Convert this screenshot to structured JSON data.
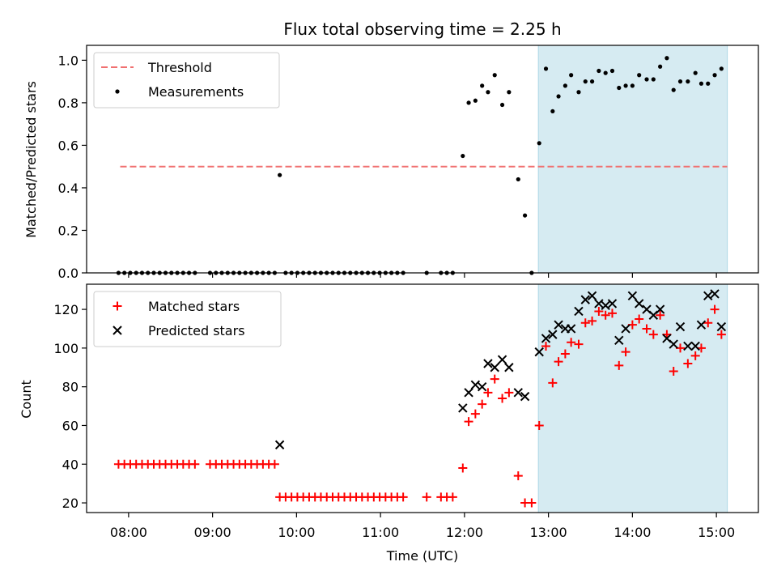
{
  "chart_data": {
    "type": "scatter",
    "title": "Flux total observing time = 2.25 h",
    "xlabel": "Time (UTC)",
    "xlim": [
      7.5,
      15.5
    ],
    "xticks": [
      8,
      9,
      10,
      11,
      12,
      13,
      14,
      15
    ],
    "xtick_labels": [
      "08:00",
      "09:00",
      "10:00",
      "11:00",
      "12:00",
      "13:00",
      "14:00",
      "15:00"
    ],
    "shaded_span": {
      "start": 12.88,
      "end": 15.13,
      "color": "#add8e6"
    },
    "top": {
      "ylabel": "Matched/Predicted stars",
      "ylim": [
        0,
        1.07
      ],
      "yticks": [
        0.0,
        0.2,
        0.4,
        0.6,
        0.8,
        1.0
      ],
      "ytick_labels": [
        "0.0",
        "0.2",
        "0.4",
        "0.6",
        "0.8",
        "1.0"
      ],
      "threshold": {
        "label": "Threshold",
        "value": 0.5,
        "x_start": 7.9,
        "x_end": 15.13,
        "color": "#f07070"
      },
      "legend": [
        "Threshold",
        "Measurements"
      ],
      "series": [
        {
          "name": "Measurements",
          "points": [
            [
              7.88,
              0
            ],
            [
              7.95,
              0
            ],
            [
              8.02,
              0
            ],
            [
              8.09,
              0
            ],
            [
              8.16,
              0
            ],
            [
              8.23,
              0
            ],
            [
              8.3,
              0
            ],
            [
              8.37,
              0
            ],
            [
              8.44,
              0
            ],
            [
              8.51,
              0
            ],
            [
              8.58,
              0
            ],
            [
              8.65,
              0
            ],
            [
              8.72,
              0
            ],
            [
              8.79,
              0
            ],
            [
              8.97,
              0
            ],
            [
              9.04,
              0
            ],
            [
              9.11,
              0
            ],
            [
              9.18,
              0
            ],
            [
              9.25,
              0
            ],
            [
              9.32,
              0
            ],
            [
              9.39,
              0
            ],
            [
              9.46,
              0
            ],
            [
              9.53,
              0
            ],
            [
              9.6,
              0
            ],
            [
              9.67,
              0
            ],
            [
              9.74,
              0
            ],
            [
              9.8,
              0.46
            ],
            [
              9.87,
              0
            ],
            [
              9.94,
              0
            ],
            [
              10.01,
              0
            ],
            [
              10.08,
              0
            ],
            [
              10.15,
              0
            ],
            [
              10.22,
              0
            ],
            [
              10.29,
              0
            ],
            [
              10.36,
              0
            ],
            [
              10.43,
              0
            ],
            [
              10.5,
              0
            ],
            [
              10.57,
              0
            ],
            [
              10.64,
              0
            ],
            [
              10.71,
              0
            ],
            [
              10.78,
              0
            ],
            [
              10.85,
              0
            ],
            [
              10.92,
              0
            ],
            [
              10.99,
              0
            ],
            [
              11.06,
              0
            ],
            [
              11.13,
              0
            ],
            [
              11.2,
              0
            ],
            [
              11.27,
              0
            ],
            [
              11.55,
              0
            ],
            [
              11.72,
              0
            ],
            [
              11.79,
              0
            ],
            [
              11.86,
              0
            ],
            [
              11.98,
              0.55
            ],
            [
              12.05,
              0.8
            ],
            [
              12.13,
              0.81
            ],
            [
              12.21,
              0.88
            ],
            [
              12.28,
              0.85
            ],
            [
              12.36,
              0.93
            ],
            [
              12.45,
              0.79
            ],
            [
              12.53,
              0.85
            ],
            [
              12.64,
              0.44
            ],
            [
              12.72,
              0.27
            ],
            [
              12.8,
              0
            ],
            [
              12.89,
              0.61
            ],
            [
              12.97,
              0.96
            ],
            [
              13.05,
              0.76
            ],
            [
              13.12,
              0.83
            ],
            [
              13.2,
              0.88
            ],
            [
              13.27,
              0.93
            ],
            [
              13.36,
              0.85
            ],
            [
              13.44,
              0.9
            ],
            [
              13.52,
              0.9
            ],
            [
              13.6,
              0.95
            ],
            [
              13.68,
              0.94
            ],
            [
              13.76,
              0.95
            ],
            [
              13.84,
              0.87
            ],
            [
              13.92,
              0.88
            ],
            [
              14.0,
              0.88
            ],
            [
              14.08,
              0.93
            ],
            [
              14.17,
              0.91
            ],
            [
              14.25,
              0.91
            ],
            [
              14.33,
              0.97
            ],
            [
              14.41,
              1.01
            ],
            [
              14.49,
              0.86
            ],
            [
              14.57,
              0.9
            ],
            [
              14.66,
              0.9
            ],
            [
              14.75,
              0.94
            ],
            [
              14.82,
              0.89
            ],
            [
              14.9,
              0.89
            ],
            [
              14.98,
              0.93
            ],
            [
              15.06,
              0.96
            ]
          ]
        }
      ]
    },
    "bottom": {
      "ylabel": "Count",
      "ylim": [
        15,
        133
      ],
      "yticks": [
        20,
        40,
        60,
        80,
        100,
        120
      ],
      "ytick_labels": [
        "20",
        "40",
        "60",
        "80",
        "100",
        "120"
      ],
      "legend": [
        "Matched stars",
        "Predicted stars"
      ],
      "series": [
        {
          "name": "Matched stars",
          "marker": "plus",
          "color": "#ff0000",
          "points": [
            [
              7.88,
              40
            ],
            [
              7.95,
              40
            ],
            [
              8.02,
              40
            ],
            [
              8.09,
              40
            ],
            [
              8.16,
              40
            ],
            [
              8.23,
              40
            ],
            [
              8.3,
              40
            ],
            [
              8.37,
              40
            ],
            [
              8.44,
              40
            ],
            [
              8.51,
              40
            ],
            [
              8.58,
              40
            ],
            [
              8.65,
              40
            ],
            [
              8.72,
              40
            ],
            [
              8.79,
              40
            ],
            [
              8.97,
              40
            ],
            [
              9.04,
              40
            ],
            [
              9.11,
              40
            ],
            [
              9.18,
              40
            ],
            [
              9.25,
              40
            ],
            [
              9.32,
              40
            ],
            [
              9.39,
              40
            ],
            [
              9.46,
              40
            ],
            [
              9.53,
              40
            ],
            [
              9.6,
              40
            ],
            [
              9.67,
              40
            ],
            [
              9.74,
              40
            ],
            [
              9.8,
              23
            ],
            [
              9.87,
              23
            ],
            [
              9.94,
              23
            ],
            [
              10.01,
              23
            ],
            [
              10.08,
              23
            ],
            [
              10.15,
              23
            ],
            [
              10.22,
              23
            ],
            [
              10.29,
              23
            ],
            [
              10.36,
              23
            ],
            [
              10.43,
              23
            ],
            [
              10.5,
              23
            ],
            [
              10.57,
              23
            ],
            [
              10.64,
              23
            ],
            [
              10.71,
              23
            ],
            [
              10.78,
              23
            ],
            [
              10.85,
              23
            ],
            [
              10.92,
              23
            ],
            [
              10.99,
              23
            ],
            [
              11.06,
              23
            ],
            [
              11.13,
              23
            ],
            [
              11.2,
              23
            ],
            [
              11.27,
              23
            ],
            [
              11.55,
              23
            ],
            [
              11.72,
              23
            ],
            [
              11.79,
              23
            ],
            [
              11.86,
              23
            ],
            [
              11.98,
              38
            ],
            [
              12.05,
              62
            ],
            [
              12.13,
              66
            ],
            [
              12.21,
              71
            ],
            [
              12.28,
              77
            ],
            [
              12.36,
              84
            ],
            [
              12.45,
              74
            ],
            [
              12.53,
              77
            ],
            [
              12.64,
              34
            ],
            [
              12.72,
              20
            ],
            [
              12.8,
              20
            ],
            [
              12.89,
              60
            ],
            [
              12.97,
              101
            ],
            [
              13.05,
              82
            ],
            [
              13.12,
              93
            ],
            [
              13.2,
              97
            ],
            [
              13.27,
              103
            ],
            [
              13.36,
              102
            ],
            [
              13.44,
              113
            ],
            [
              13.52,
              114
            ],
            [
              13.6,
              119
            ],
            [
              13.68,
              117
            ],
            [
              13.76,
              118
            ],
            [
              13.84,
              91
            ],
            [
              13.92,
              98
            ],
            [
              14.0,
              112
            ],
            [
              14.08,
              115
            ],
            [
              14.17,
              110
            ],
            [
              14.25,
              107
            ],
            [
              14.33,
              117
            ],
            [
              14.41,
              107
            ],
            [
              14.49,
              88
            ],
            [
              14.57,
              100
            ],
            [
              14.66,
              92
            ],
            [
              14.75,
              96
            ],
            [
              14.82,
              100
            ],
            [
              14.9,
              113
            ],
            [
              14.98,
              120
            ],
            [
              15.06,
              107
            ]
          ]
        },
        {
          "name": "Predicted stars",
          "marker": "x",
          "color": "#000000",
          "points": [
            [
              9.8,
              50
            ],
            [
              11.98,
              69
            ],
            [
              12.05,
              77
            ],
            [
              12.13,
              81
            ],
            [
              12.21,
              80
            ],
            [
              12.28,
              92
            ],
            [
              12.36,
              90
            ],
            [
              12.45,
              94
            ],
            [
              12.53,
              90
            ],
            [
              12.64,
              77
            ],
            [
              12.72,
              75
            ],
            [
              12.89,
              98
            ],
            [
              12.97,
              105
            ],
            [
              13.05,
              107
            ],
            [
              13.12,
              112
            ],
            [
              13.2,
              110
            ],
            [
              13.27,
              110
            ],
            [
              13.36,
              119
            ],
            [
              13.44,
              125
            ],
            [
              13.52,
              127
            ],
            [
              13.6,
              123
            ],
            [
              13.68,
              122
            ],
            [
              13.76,
              123
            ],
            [
              13.84,
              104
            ],
            [
              13.92,
              110
            ],
            [
              14.0,
              127
            ],
            [
              14.08,
              123
            ],
            [
              14.17,
              120
            ],
            [
              14.25,
              117
            ],
            [
              14.33,
              120
            ],
            [
              14.41,
              105
            ],
            [
              14.49,
              102
            ],
            [
              14.57,
              111
            ],
            [
              14.66,
              101
            ],
            [
              14.75,
              101
            ],
            [
              14.82,
              112
            ],
            [
              14.9,
              127
            ],
            [
              14.98,
              128
            ],
            [
              15.06,
              111
            ]
          ]
        }
      ]
    }
  }
}
